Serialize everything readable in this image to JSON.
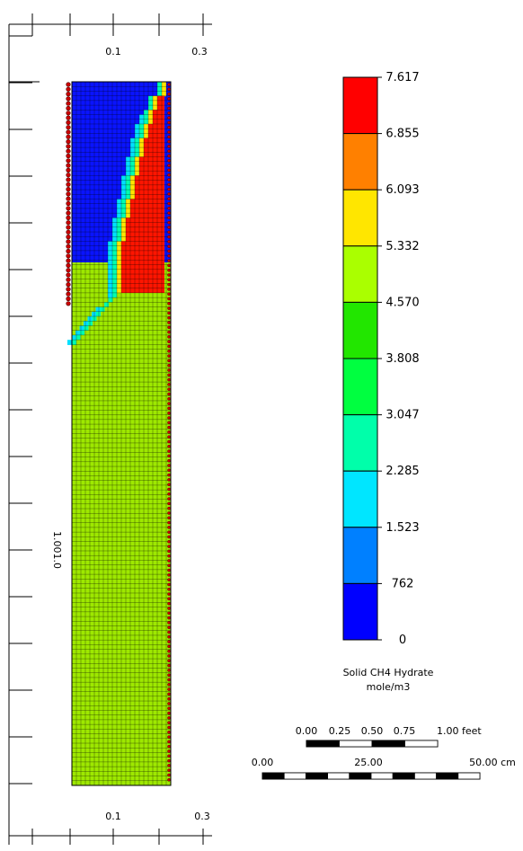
{
  "chart_data": {
    "type": "heatmap",
    "title": "",
    "top_axis": {
      "tick_labels": [
        "0.1",
        "0.3"
      ]
    },
    "bottom_axis": {
      "tick_labels": [
        "0.1",
        "0.3"
      ]
    },
    "left_axis": {
      "tick_labels": [
        "1.001.0"
      ]
    },
    "legend": {
      "title": "Solid CH4 Hydrate",
      "unit": "mole/m3",
      "levels": [
        "7.617",
        "6.855",
        "6.093",
        "5.332",
        "4.570",
        "3.808",
        "3.047",
        "2.285",
        "1.523",
        "762",
        "0"
      ],
      "colors_top_to_bottom": [
        "#ff0000",
        "#ff8000",
        "#ffe600",
        "#aaff00",
        "#22e600",
        "#00ff40",
        "#00ffaa",
        "#00e6ff",
        "#0080ff",
        "#0000ff"
      ]
    },
    "grid": {
      "columns": 22,
      "rows": 150
    },
    "regions": {
      "saturated_hydrate_value": "7.617",
      "lower_zone_value": "5.332",
      "depleted_zone_value": "0"
    },
    "scale_bars": [
      {
        "labels": [
          "0.00",
          "0.25",
          "0.50",
          "0.75",
          "1.00 feet"
        ]
      },
      {
        "labels": [
          "0.00",
          "25.00",
          "50.00 cm"
        ]
      }
    ]
  },
  "colors": {
    "depleted": "#0a14ff",
    "transition_1": "#0090ff",
    "transition_2": "#00e0ff",
    "transition_3": "#00ffb0",
    "transition_4": "#ffe600",
    "saturated": "#ff1500",
    "lower": "#9ee800",
    "wells": "#cc0000"
  }
}
